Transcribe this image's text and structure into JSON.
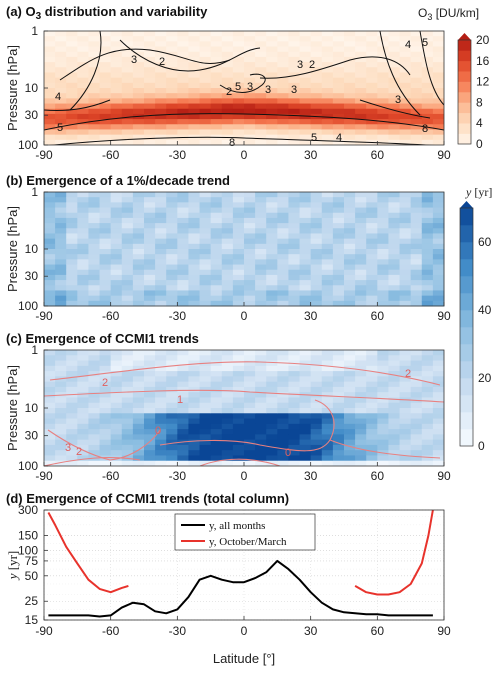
{
  "chart_data": [
    {
      "type": "heatmap",
      "title": "(a) O3 distribution and variability",
      "ylabel": "Pressure [hPa]",
      "colorbar_label": "O3 [DU/km]",
      "colorbar_ticks": [
        0,
        4,
        8,
        12,
        16,
        20
      ],
      "colorbar_range": [
        0,
        20
      ],
      "y_scale": "log",
      "x_ticks": [
        -90,
        -60,
        -30,
        0,
        30,
        60,
        90
      ],
      "y_ticks": [
        1,
        10,
        30,
        100
      ],
      "contour_labels": [
        "3",
        "2",
        "3",
        "5",
        "3",
        "2",
        "3",
        "3",
        "2",
        "4",
        "5",
        "3",
        "8",
        "5",
        "4",
        "5",
        "4",
        "8"
      ],
      "field_description": "O3 peaks near 20–30 hPa (about 16–20 DU/km), lower values above 10 hPa",
      "peak_pressure_hpa": 25,
      "peak_value": 18
    },
    {
      "type": "heatmap",
      "title": "(b) Emergence of a 1%/decade trend",
      "ylabel": "Pressure [hPa]",
      "y_scale": "log",
      "x_ticks": [
        -90,
        -60,
        -30,
        0,
        30,
        60,
        90
      ],
      "y_ticks": [
        1,
        10,
        30,
        100
      ],
      "typical_value_yr": 25
    },
    {
      "type": "heatmap",
      "title": "(c) Emergence of CCMI1 trends",
      "ylabel": "Pressure [hPa]",
      "y_scale": "log",
      "x_ticks": [
        -90,
        -60,
        -30,
        0,
        30,
        60,
        90
      ],
      "y_ticks": [
        1,
        10,
        30,
        100
      ],
      "contour_labels": [
        "2",
        "2",
        "1",
        "0",
        "0",
        "3",
        "2"
      ],
      "shared_colorbar_label": "y [yr]",
      "shared_colorbar_ticks": [
        0,
        20,
        40,
        60
      ],
      "shared_colorbar_range": [
        0,
        70
      ]
    },
    {
      "type": "line",
      "title": "(d) Emergence of CCMI1 trends (total column)",
      "xlabel": "Latitude [°]",
      "ylabel": "y [yr]",
      "y_scale": "log",
      "ylim": [
        15,
        300
      ],
      "xlim": [
        -90,
        90
      ],
      "x_ticks": [
        -90,
        -60,
        -30,
        0,
        30,
        60,
        90
      ],
      "y_ticks": [
        15,
        25,
        50,
        75,
        100,
        150,
        300
      ],
      "legend_position": "top-center",
      "series": [
        {
          "name": "y, all months",
          "color": "#000000",
          "x": [
            -88,
            -80,
            -70,
            -65,
            -60,
            -55,
            -50,
            -45,
            -40,
            -35,
            -30,
            -25,
            -20,
            -15,
            -10,
            -5,
            0,
            5,
            10,
            15,
            20,
            25,
            30,
            35,
            40,
            45,
            50,
            55,
            60,
            65,
            70,
            75,
            80,
            85
          ],
          "y": [
            17,
            17,
            17,
            16.5,
            17,
            21,
            24,
            23,
            19,
            18,
            20,
            28,
            45,
            50,
            45,
            42,
            42,
            47,
            55,
            75,
            60,
            45,
            32,
            24,
            20,
            18.5,
            18,
            17.5,
            17.5,
            17,
            17,
            17,
            17,
            17
          ]
        },
        {
          "name": "y, October/March",
          "color": "#e8332c",
          "x": [
            -88,
            -85,
            -80,
            -75,
            -70,
            -65,
            -60,
            -55,
            -52
          ],
          "y": [
            280,
            200,
            110,
            70,
            45,
            35,
            32,
            36,
            38
          ]
        },
        {
          "name": "",
          "color": "#e8332c",
          "x": [
            50,
            55,
            60,
            65,
            70,
            75,
            80,
            83,
            85
          ],
          "y": [
            38,
            32,
            30,
            30,
            32,
            40,
            70,
            150,
            300
          ]
        }
      ]
    }
  ]
}
